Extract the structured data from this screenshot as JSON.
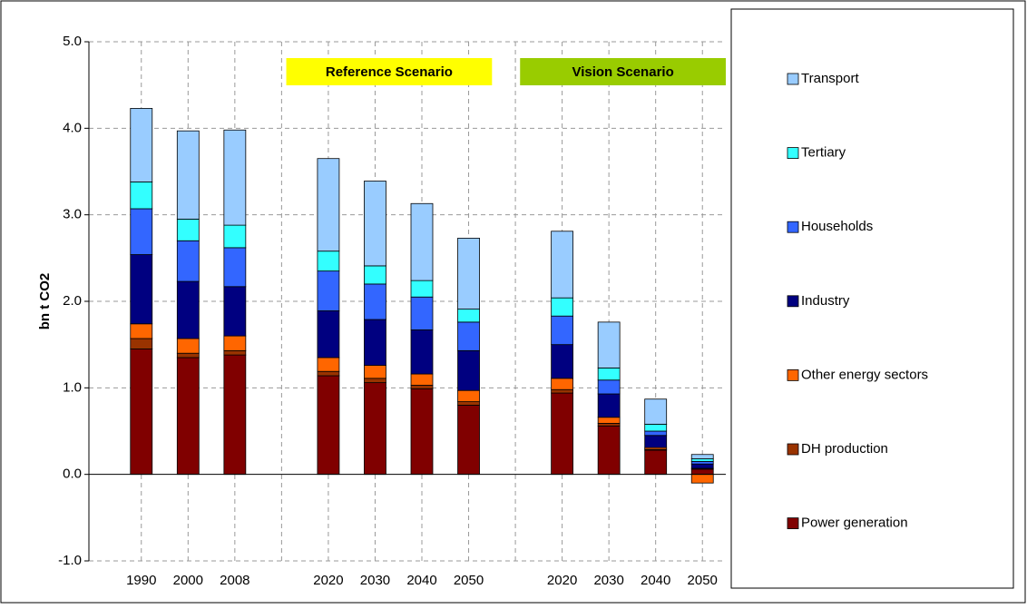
{
  "chart_data": {
    "type": "bar",
    "stacked": true,
    "y_label": "bn t CO2",
    "annotations": [
      {
        "text": "Reference Scenario",
        "color": "#ffff00",
        "from": 4,
        "to": 7
      },
      {
        "text": "Vision  Scenario",
        "color": "#99cc00",
        "from": 9,
        "to": 12
      }
    ],
    "categories": [
      "1990",
      "2000",
      "2008",
      null,
      "2020",
      "2030",
      "2040",
      "2050",
      null,
      "2020",
      "2030",
      "2040",
      "2050"
    ],
    "series": [
      {
        "name": "Power generation",
        "color": "#800000",
        "values": [
          1.45,
          1.35,
          1.38,
          null,
          1.14,
          1.06,
          0.99,
          0.8,
          null,
          0.94,
          0.56,
          0.28,
          0.06
        ]
      },
      {
        "name": "DH production",
        "color": "#993300",
        "values": [
          0.12,
          0.05,
          0.05,
          null,
          0.05,
          0.05,
          0.04,
          0.04,
          null,
          0.04,
          0.03,
          0.01,
          0.01
        ]
      },
      {
        "name": "Other energy sectors",
        "color": "#ff6600",
        "values": [
          0.17,
          0.17,
          0.17,
          null,
          0.16,
          0.15,
          0.13,
          0.13,
          null,
          0.13,
          0.07,
          0.02,
          -0.1
        ]
      },
      {
        "name": "Industry",
        "color": "#000080",
        "values": [
          0.8,
          0.66,
          0.57,
          null,
          0.54,
          0.53,
          0.51,
          0.46,
          null,
          0.39,
          0.27,
          0.14,
          0.05
        ]
      },
      {
        "name": "Households",
        "color": "#3366ff",
        "values": [
          0.53,
          0.47,
          0.45,
          null,
          0.46,
          0.41,
          0.38,
          0.33,
          null,
          0.33,
          0.16,
          0.05,
          0.03
        ]
      },
      {
        "name": "Tertiary",
        "color": "#33ffff",
        "values": [
          0.31,
          0.25,
          0.26,
          null,
          0.23,
          0.21,
          0.19,
          0.15,
          null,
          0.21,
          0.14,
          0.08,
          0.03
        ]
      },
      {
        "name": "Transport",
        "color": "#99ccff",
        "values": [
          0.85,
          1.02,
          1.1,
          null,
          1.07,
          0.98,
          0.89,
          0.82,
          null,
          0.77,
          0.53,
          0.29,
          0.05
        ]
      }
    ],
    "ylim": [
      -1,
      5
    ],
    "yticks": [
      {
        "value": -1,
        "label": "-1.0"
      },
      {
        "value": 0,
        "label": "0.0"
      },
      {
        "value": 1,
        "label": "1.0"
      },
      {
        "value": 2,
        "label": "2.0"
      },
      {
        "value": 3,
        "label": "3.0"
      },
      {
        "value": 4,
        "label": "4.0"
      },
      {
        "value": 5,
        "label": "5.0"
      }
    ],
    "grid": true,
    "legend": "right"
  }
}
